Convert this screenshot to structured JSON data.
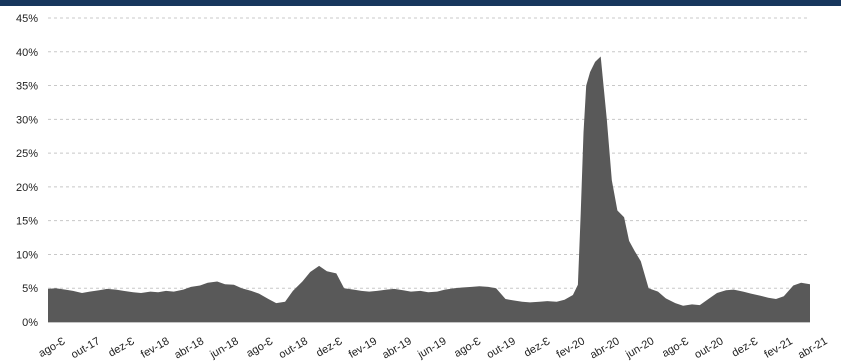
{
  "chart_data": {
    "type": "area",
    "title": "",
    "xlabel": "",
    "ylabel": "",
    "ylim": [
      0,
      45
    ],
    "yticks": [
      "0%",
      "5%",
      "10%",
      "15%",
      "20%",
      "25%",
      "30%",
      "35%",
      "40%",
      "45%"
    ],
    "xticks": [
      "ago-17",
      "out-17",
      "dez-17",
      "fev-18",
      "abr-18",
      "jun-18",
      "ago-18",
      "out-18",
      "dez-18",
      "fev-19",
      "abr-19",
      "jun-19",
      "ago-19",
      "out-19",
      "dez-19",
      "fev-20",
      "abr-20",
      "jun-20",
      "ago-20",
      "out-20",
      "dez-20",
      "fev-21",
      "abr-21"
    ],
    "xtick_labels": [
      "ago-Ɛ",
      "out-17",
      "dez-Ɛ",
      "fev-18",
      "abr-18",
      "jun-18",
      "ago-Ɛ",
      "out-18",
      "dez-Ɛ",
      "fev-19",
      "abr-19",
      "jun-19",
      "ago-Ɛ",
      "out-19",
      "dez-Ɛ",
      "fev-20",
      "abr-20",
      "jun-20",
      "ago-Ɛ",
      "out-20",
      "dez-Ɛ",
      "fev-21",
      "abr-21"
    ],
    "grid": true,
    "color": "#595959",
    "series": [
      {
        "x": [
          "2017-08-01",
          "2017-08-15",
          "2017-09-01",
          "2017-09-15",
          "2017-10-01",
          "2017-10-15",
          "2017-11-01",
          "2017-11-15",
          "2017-12-01",
          "2017-12-15",
          "2018-01-01",
          "2018-01-15",
          "2018-02-01",
          "2018-02-15",
          "2018-03-01",
          "2018-03-15",
          "2018-04-01",
          "2018-04-15",
          "2018-05-01",
          "2018-05-15",
          "2018-06-01",
          "2018-06-15",
          "2018-07-01",
          "2018-07-15",
          "2018-08-01",
          "2018-08-15",
          "2018-09-01",
          "2018-09-15",
          "2018-10-01",
          "2018-10-15",
          "2018-11-01",
          "2018-11-15",
          "2018-12-01",
          "2018-12-15",
          "2019-01-01",
          "2019-01-15",
          "2019-02-01",
          "2019-02-15",
          "2019-03-01",
          "2019-03-15",
          "2019-04-01",
          "2019-04-15",
          "2019-05-01",
          "2019-05-15",
          "2019-06-01",
          "2019-06-15",
          "2019-07-01",
          "2019-07-15",
          "2019-08-01",
          "2019-08-15",
          "2019-09-01",
          "2019-09-15",
          "2019-10-01",
          "2019-10-15",
          "2019-11-01",
          "2019-11-15",
          "2019-12-01",
          "2019-12-15",
          "2020-01-01",
          "2020-01-15",
          "2020-02-01",
          "2020-02-15",
          "2020-03-01",
          "2020-03-10",
          "2020-03-15",
          "2020-03-20",
          "2020-03-25",
          "2020-04-01",
          "2020-04-10",
          "2020-04-20",
          "2020-05-01",
          "2020-05-10",
          "2020-05-20",
          "2020-06-01",
          "2020-06-10",
          "2020-06-20",
          "2020-07-01",
          "2020-07-15",
          "2020-08-01",
          "2020-08-15",
          "2020-09-01",
          "2020-09-15",
          "2020-10-01",
          "2020-10-15",
          "2020-11-01",
          "2020-11-15",
          "2020-12-01",
          "2020-12-15",
          "2021-01-01",
          "2021-01-15",
          "2021-02-01",
          "2021-02-15",
          "2021-03-01",
          "2021-03-15",
          "2021-04-01",
          "2021-04-15",
          "2021-05-01"
        ],
        "values": [
          4.9,
          5.0,
          4.8,
          4.6,
          4.3,
          4.5,
          4.7,
          4.9,
          4.8,
          4.6,
          4.4,
          4.3,
          4.5,
          4.4,
          4.6,
          4.5,
          4.8,
          5.2,
          5.4,
          5.8,
          6.0,
          5.6,
          5.5,
          5.0,
          4.6,
          4.2,
          3.4,
          2.8,
          3.0,
          4.6,
          6.0,
          7.4,
          8.3,
          7.5,
          7.2,
          5.0,
          4.8,
          4.6,
          4.5,
          4.6,
          4.8,
          4.9,
          4.7,
          4.5,
          4.6,
          4.4,
          4.5,
          4.8,
          5.0,
          5.1,
          5.2,
          5.3,
          5.2,
          5.0,
          3.4,
          3.2,
          3.0,
          2.9,
          3.0,
          3.1,
          3.0,
          3.3,
          4.0,
          5.5,
          16.0,
          28.0,
          35.0,
          37.0,
          38.5,
          39.3,
          30.0,
          21.0,
          16.5,
          15.5,
          12.0,
          10.5,
          9.0,
          5.0,
          4.5,
          3.5,
          2.8,
          2.4,
          2.6,
          2.5,
          3.5,
          4.3,
          4.7,
          4.8,
          4.5,
          4.2,
          3.9,
          3.6,
          3.4,
          3.8,
          5.4,
          5.8,
          5.6
        ]
      }
    ]
  }
}
